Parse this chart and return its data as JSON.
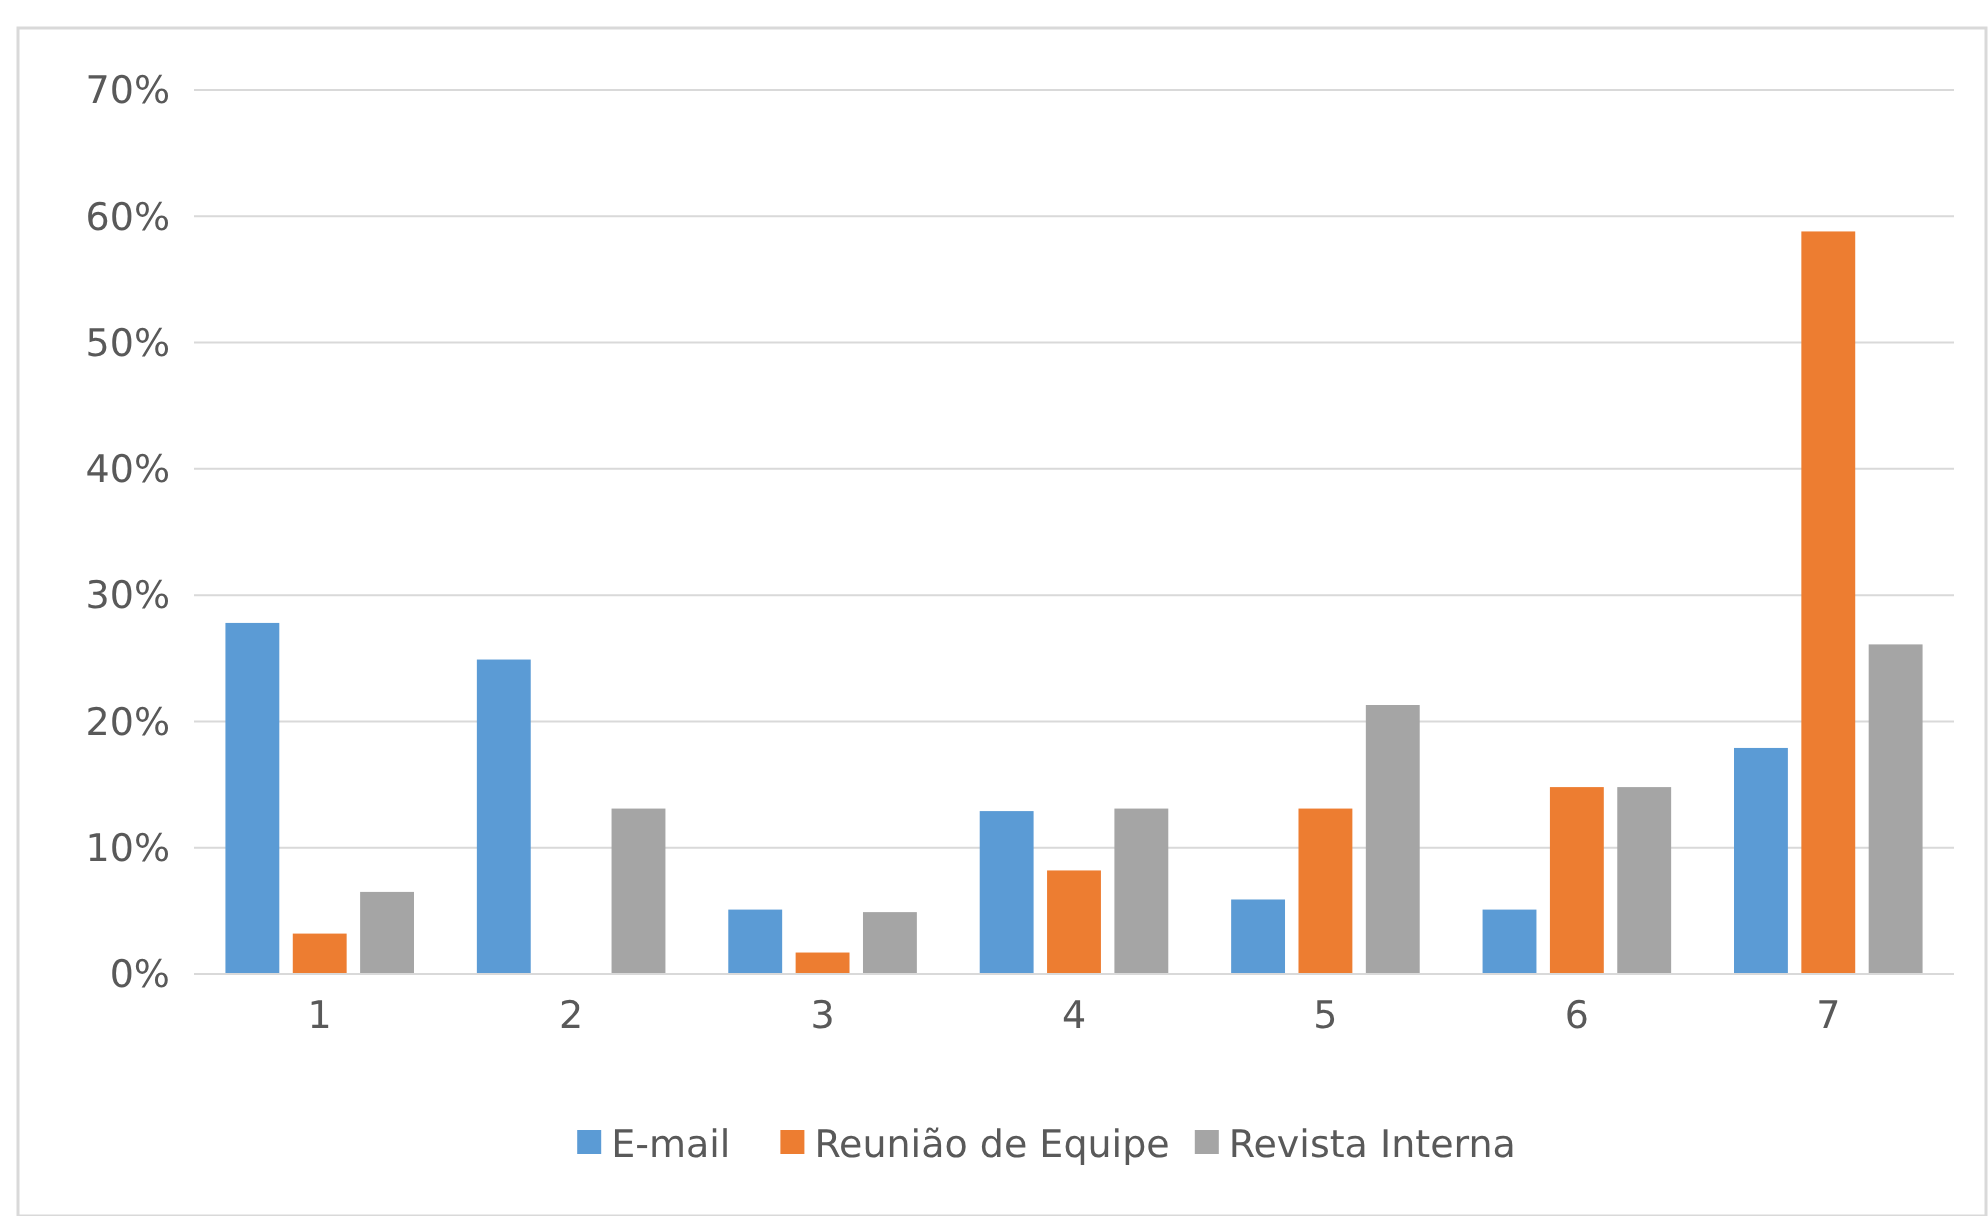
{
  "chart_data": {
    "type": "bar",
    "categories": [
      "1",
      "2",
      "3",
      "4",
      "5",
      "6",
      "7"
    ],
    "series": [
      {
        "name": "E-mail",
        "color": "#5b9bd5",
        "values": [
          27.8,
          24.9,
          5.1,
          12.9,
          5.9,
          5.1,
          17.9
        ]
      },
      {
        "name": "Reunião de Equipe",
        "color": "#ed7d31",
        "values": [
          3.2,
          0,
          1.7,
          8.2,
          13.1,
          14.8,
          58.8
        ]
      },
      {
        "name": "Revista Interna",
        "color": "#a5a5a5",
        "values": [
          6.5,
          13.1,
          4.9,
          13.1,
          21.3,
          14.8,
          26.1
        ]
      }
    ],
    "ylim": [
      0,
      70
    ],
    "yticks": [
      {
        "value": 0,
        "label": "0%"
      },
      {
        "value": 10,
        "label": "10%"
      },
      {
        "value": 20,
        "label": "20%"
      },
      {
        "value": 30,
        "label": "30%"
      },
      {
        "value": 40,
        "label": "40%"
      },
      {
        "value": 50,
        "label": "50%"
      },
      {
        "value": 60,
        "label": "60%"
      },
      {
        "value": 70,
        "label": "70%"
      }
    ],
    "grid": "y",
    "legend": "bottom"
  }
}
